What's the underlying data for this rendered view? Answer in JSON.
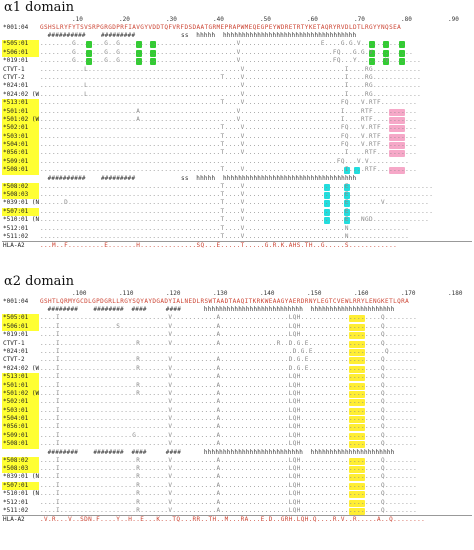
{
  "panels": [
    {
      "title": "α1 domain",
      "ruler": [
        ".10",
        ".20",
        ".30",
        ".40",
        ".50",
        ".60",
        ".70",
        ".80",
        ".90"
      ],
      "ss_top": "  ##########    #########            ss  hhhhh  hhhhhhhhhhhhhhhhhhhhhhhhhhhhhhhhhhh",
      "reference": {
        "allele": "*001:04",
        "sequence": "GSHSLRYFYTSVSRPGRGDPRFIAVGYVDDTQFVRFDSDAATGRMEPRAPWMEQEGPEYWDRETRTYKETAQRYRVDLDTLRGYYNQSEA"
      },
      "group1": [
        {
          "allele": "*505:01",
          "hl": true,
          "seq": "........G.......G..G.............................V....................E....G.G.V..........."
        },
        {
          "allele": "*506:01",
          "hl": true,
          "seq": "........G.......G..G.............................V.......................FQ...G.G.V.........."
        },
        {
          "allele": "*019:01",
          "hl": false,
          "seq": "........G.......G..G.............................V.......................FQ...Y.......V........"
        },
        {
          "allele": "CTVT-1",
          "hl": false,
          "seq": "...........L......................................V.........................I....RG............"
        },
        {
          "allele": "CTVT-2",
          "hl": false,
          "seq": ".............................................T....V.........................I....RG............"
        },
        {
          "allele": "*024:01",
          "hl": false,
          "seq": "...........L......................................V.........................I....RG............"
        },
        {
          "allele": "*024:02 (W)",
          "hl": false,
          "seq": "...........L......................................V.........................I....RG............"
        },
        {
          "allele": "*513:01",
          "hl": true,
          "seq": ".............................................T....V........................FQ...V.RTF........."
        },
        {
          "allele": "*501:01",
          "hl": true,
          "seq": "........................A........................V.........................I....RTF..........."
        },
        {
          "allele": "*501:02 (W)",
          "hl": true,
          "seq": "........................A........................V.........................I....RTF..........."
        },
        {
          "allele": "*502:01",
          "hl": true,
          "seq": ".............................................T....V........................FQ...V.RTF........."
        },
        {
          "allele": "*503:01",
          "hl": true,
          "seq": ".............................................T....V........................FQ...V.RTF........."
        },
        {
          "allele": "*504:01",
          "hl": true,
          "seq": ".............................................T....V........................FQ...V.RTF........."
        },
        {
          "allele": "*056:01",
          "hl": true,
          "seq": ".............................................T....V.........................I....RTF.........."
        },
        {
          "allele": "*509:01",
          "hl": true,
          "seq": "..........................................................................FQ...V.V.........."
        },
        {
          "allele": "*508:01",
          "hl": true,
          "seq": ".............................................T....V.........................I....RTF.........."
        }
      ],
      "ss_mid": "  ##########    #########            ss  hhhhh  hhhhhhhhhhhhhhhhhhhhhhhhhhhhhhhhhhh",
      "group2": [
        {
          "allele": "*508:02",
          "hl": true,
          "seq": ".............................................T....V.........................E....................."
        },
        {
          "allele": "*508:03",
          "hl": true,
          "seq": ".............................................T....V.........................E....................."
        },
        {
          "allele": "*039:01 (N)",
          "hl": false,
          "seq": "......D......................................T....V.........................E........V..........."
        },
        {
          "allele": "*507:01",
          "hl": true,
          "seq": ".............................................T....V.........................E....................."
        },
        {
          "allele": "*510:01 (N)",
          "hl": false,
          "seq": ".............................................T....V.........................E...NGD.............."
        },
        {
          "allele": "*512:01",
          "hl": false,
          "seq": ".............................................T....V.........................N..............."
        },
        {
          "allele": "*511:02",
          "hl": false,
          "seq": ".............................................T....V.........................N..............."
        }
      ],
      "hla": {
        "allele": "HLA-A2",
        "seq": "...M..F.........E.......H..............SQ...E.....T.....G.R.K.AHS.TH..G.....S............"
      }
    },
    {
      "title": "α2 domain",
      "ruler": [
        ".100",
        ".110",
        ".120",
        ".130",
        ".140",
        ".150",
        ".160",
        ".170",
        ".180"
      ],
      "ss_top": "  ########    ########  ####     ####      hhhhhhhhhhhhhhhhhhhhhhhhhh  hhhhhhhhhhhhhhhhhhhhhh",
      "reference": {
        "allele": "*001:04",
        "sequence": "GSHTLQRMYGCDLGPDGRLLRGYSQYAYDGADYIALNEDLRSWTAADTAAQITKRKWEAAGYAERDRNYLEGTCVEWLRRYLENGKETLQRA"
      },
      "group1": [
        {
          "allele": "*505:01",
          "hl": true,
          "seq": "....I...........................V...........A.................LQH....................Q........"
        },
        {
          "allele": "*506:01",
          "hl": true,
          "seq": "....I..............S............V...........A.................LQH....................Q........"
        },
        {
          "allele": "*019:01",
          "hl": false,
          "seq": "....I...........................V...........A.................LQH....................Q........"
        },
        {
          "allele": "CTVT-1",
          "hl": false,
          "seq": "....I...................R.......V...........A..............R..D.G.E..................Q........"
        },
        {
          "allele": "*024:01",
          "hl": false,
          "seq": "....I..........................................................D.G.E..................Q........"
        },
        {
          "allele": "CTVT-2",
          "hl": false,
          "seq": "....I...................R.......V...........A.................D.G.E..................Q........"
        },
        {
          "allele": "*024:02 (W)",
          "hl": false,
          "seq": "....I...................R.......V...........A.................D.G.E..................Q........"
        },
        {
          "allele": "*513:01",
          "hl": true,
          "seq": "....I...........................V...........A.................LQH....................Q........"
        },
        {
          "allele": "*501:01",
          "hl": true,
          "seq": "....I...................R.......V...........A.................LQH....................Q........"
        },
        {
          "allele": "*501:02 (W)",
          "hl": true,
          "seq": "....I...................R.......V...........A.................LQH....................Q........"
        },
        {
          "allele": "*502:01",
          "hl": true,
          "seq": "....I...........................V...........A.................LQH....................Q........"
        },
        {
          "allele": "*503:01",
          "hl": true,
          "seq": "....I...........................V...........A.................LQH....................Q........"
        },
        {
          "allele": "*504:01",
          "hl": true,
          "seq": "....I...........................V...........A.................LQH....................Q........"
        },
        {
          "allele": "*056:01",
          "hl": true,
          "seq": "....I...........................V...........A.................LQH....................Q........"
        },
        {
          "allele": "*509:01",
          "hl": true,
          "seq": "....I..................G........V...........A.................LQH....................Q........"
        },
        {
          "allele": "*508:01",
          "hl": true,
          "seq": "....I...........................V...........A.................LQH....................Q........"
        }
      ],
      "ss_mid": "  ########    ########  ####     ####      hhhhhhhhhhhhhhhhhhhhhhhhhh  hhhhhhhhhhhhhhhhhhhhhh",
      "group2": [
        {
          "allele": "*508:02",
          "hl": true,
          "seq": "....I...................R.......V...........A.................LQH....................Q........"
        },
        {
          "allele": "*508:03",
          "hl": true,
          "seq": "....I...................R.......V...........A.................LQH....................Q........"
        },
        {
          "allele": "*039:01 (N)",
          "hl": false,
          "seq": "....I...................R.......V...........A.................LQH....................Q........"
        },
        {
          "allele": "*507:01",
          "hl": true,
          "seq": "....I...................R.......V...........A.................LQH....................Q........"
        },
        {
          "allele": "*510:01 (N)",
          "hl": false,
          "seq": "....I...................R.......V...........A.................LQH....................Q........"
        },
        {
          "allele": "*512:01",
          "hl": false,
          "seq": "....I...................R.......V...........A.................LQH....................Q........"
        },
        {
          "allele": "*511:02",
          "hl": false,
          "seq": "....I...................R.......V...........A.................LQH....................Q........"
        }
      ],
      "hla": {
        "allele": "HLA-A2",
        "seq": ".V.R...V..SDN.F....Y..H..E...K...TQ...RR..TH..M...RA...E.D..GRH.LQH.Q....R.V..R.....A..Q........"
      }
    }
  ],
  "colors": {
    "highlight": "#ffff33",
    "green": "#33cc33",
    "cyan": "#22dddd",
    "pink": "#f6a8c8",
    "yellow": "#ffee33"
  }
}
